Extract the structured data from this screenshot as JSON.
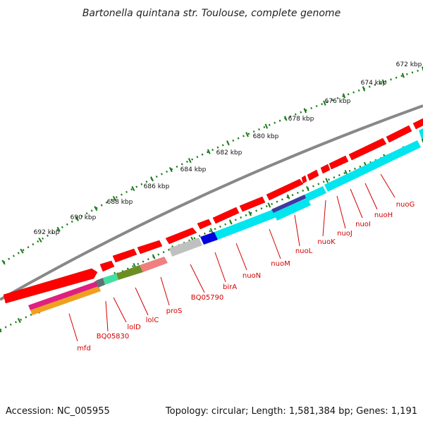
{
  "title": "Bartonella quintana str. Toulouse, complete genome",
  "footer": {
    "accession": "Accession: NC_005955",
    "stats": "Topology: circular; Length: 1,581,384 bp; Genes: 1,191"
  },
  "ticks": [
    "672 kbp",
    "674 kbp",
    "676 kbp",
    "678 kbp",
    "680 kbp",
    "682 kbp",
    "684 kbp",
    "686 kbp",
    "688 kbp",
    "690 kbp",
    "692 kbp"
  ],
  "genes": [
    "nuoG",
    "nuoH",
    "nuoI",
    "nuoJ",
    "nuoK",
    "nuoL",
    "nuoM",
    "nuoN",
    "birA",
    "BQ05790",
    "proS",
    "lolC",
    "lolD",
    "BQ05830",
    "mfd"
  ],
  "colors": {
    "forward_gene": "#ff0000",
    "label": "#d40000",
    "backbone": "#808080",
    "ruler": "#1a7a1a",
    "cyan": "#00e5ee",
    "blue": "#0000dd",
    "navy": "#3b3ba0",
    "olive": "#6b8e23",
    "salmon": "#f08080",
    "silver": "#c0c0c0",
    "magenta": "#e0207f",
    "orange": "#f0a020",
    "teal": "#40e0a0",
    "slate": "#607070"
  }
}
